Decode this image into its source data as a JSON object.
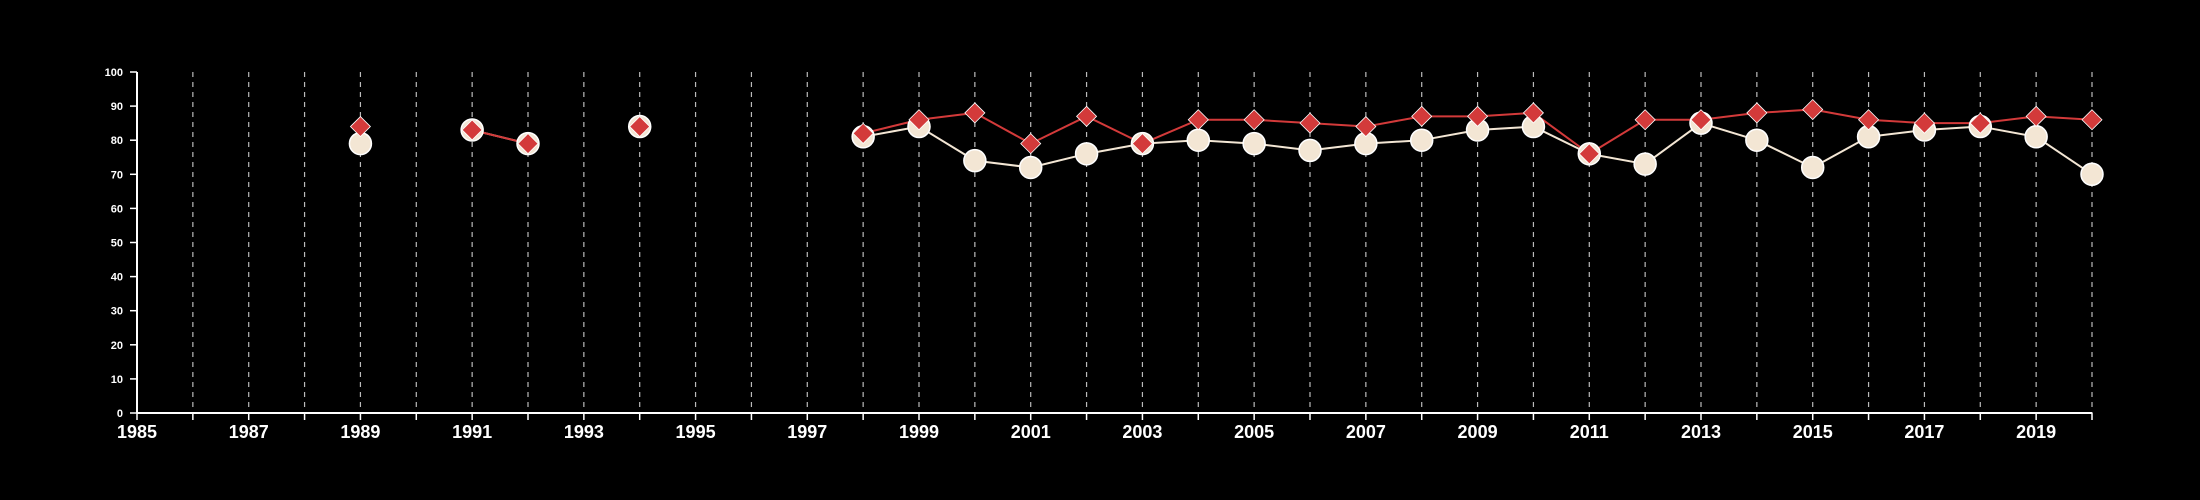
{
  "chart_data": {
    "type": "line",
    "title": "",
    "xlabel": "",
    "ylabel": "",
    "xlim": [
      1985,
      2020
    ],
    "ylim": [
      0,
      100
    ],
    "x_ticks": [
      "1985",
      "1987",
      "1989",
      "1991",
      "1993",
      "1995",
      "1997",
      "1999",
      "2001",
      "2003",
      "2005",
      "2007",
      "2009",
      "2011",
      "2013",
      "2015",
      "2017",
      "2019"
    ],
    "y_ticks": [
      "0",
      "10",
      "20",
      "30",
      "40",
      "50",
      "60",
      "70",
      "80",
      "90",
      "100"
    ],
    "grid": "vertical dashed at every year",
    "legend": "none",
    "colors": {
      "background": "#000000",
      "axis": "#ffffff",
      "grid": "#bbbbbb"
    },
    "series": [
      {
        "color": "#f3e6d4",
        "marker": "circle",
        "x": [
          1989,
          1991,
          1992,
          1994,
          1998,
          1999,
          2000,
          2001,
          2002,
          2003,
          2004,
          2005,
          2006,
          2007,
          2008,
          2009,
          2010,
          2011,
          2012,
          2013,
          2014,
          2015,
          2016,
          2017,
          2018,
          2019,
          2020
        ],
        "values": [
          79,
          83,
          79,
          84,
          81,
          84,
          74,
          72,
          76,
          79,
          80,
          79,
          77,
          79,
          80,
          83,
          84,
          76,
          73,
          85,
          80,
          72,
          81,
          83,
          84,
          81,
          70
        ]
      },
      {
        "color": "#d33a3a",
        "marker": "diamond",
        "x": [
          1989,
          1991,
          1992,
          1994,
          1998,
          1999,
          2000,
          2001,
          2002,
          2003,
          2004,
          2005,
          2006,
          2007,
          2008,
          2009,
          2010,
          2011,
          2012,
          2013,
          2014,
          2015,
          2016,
          2017,
          2018,
          2019,
          2020
        ],
        "values": [
          84,
          83,
          79,
          84,
          82,
          86,
          88,
          79,
          87,
          79,
          86,
          86,
          85,
          84,
          87,
          87,
          88,
          76,
          86,
          86,
          88,
          89,
          86,
          85,
          85,
          87,
          86
        ]
      }
    ]
  }
}
